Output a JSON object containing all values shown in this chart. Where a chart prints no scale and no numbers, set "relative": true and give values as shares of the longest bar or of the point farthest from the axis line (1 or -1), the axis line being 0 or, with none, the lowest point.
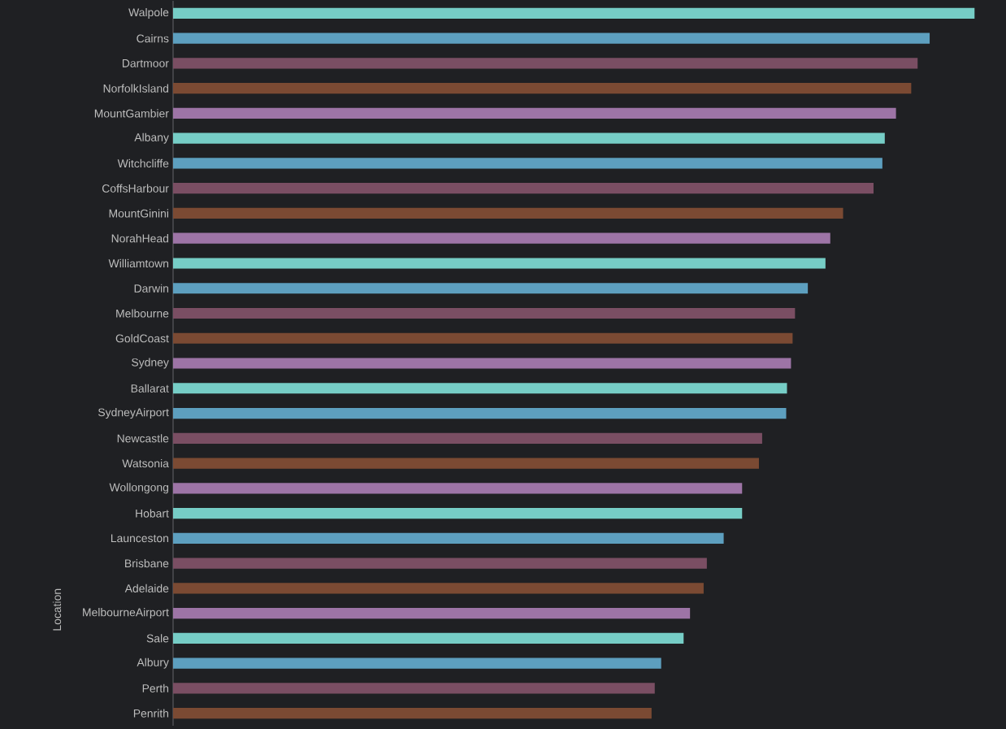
{
  "chart_data": {
    "type": "bar",
    "orientation": "horizontal",
    "relative": true,
    "ylabel": "Location",
    "categories": [
      "Walpole",
      "Cairns",
      "Dartmoor",
      "NorfolkIsland",
      "MountGambier",
      "Albany",
      "Witchcliffe",
      "CoffsHarbour",
      "MountGinini",
      "NorahHead",
      "Williamtown",
      "Darwin",
      "Melbourne",
      "GoldCoast",
      "Sydney",
      "Ballarat",
      "SydneyAirport",
      "Newcastle",
      "Watsonia",
      "Wollongong",
      "Hobart",
      "Launceston",
      "Brisbane",
      "Adelaide",
      "MelbourneAirport",
      "Sale",
      "Albury",
      "Perth",
      "Penrith"
    ],
    "values": [
      1,
      0.944,
      0.929,
      0.921,
      0.902,
      0.888,
      0.885,
      0.874,
      0.836,
      0.82,
      0.814,
      0.792,
      0.776,
      0.773,
      0.771,
      0.766,
      0.765,
      0.735,
      0.731,
      0.71,
      0.71,
      0.687,
      0.666,
      0.662,
      0.645,
      0.637,
      0.609,
      0.601,
      0.597
    ],
    "colors": [
      "#76cdc6",
      "#5d9fbf",
      "#7a4e63",
      "#7b4a33",
      "#9d74a6",
      "#76cdc6",
      "#5d9fbf",
      "#7a4e63",
      "#7b4a33",
      "#9d74a6",
      "#76cdc6",
      "#5d9fbf",
      "#7a4e63",
      "#7b4a33",
      "#9d74a6",
      "#76cdc6",
      "#5d9fbf",
      "#7a4e63",
      "#7b4a33",
      "#9d74a6",
      "#76cdc6",
      "#5d9fbf",
      "#7a4e63",
      "#7b4a33",
      "#9d74a6",
      "#76cdc6",
      "#5d9fbf",
      "#7a4e63",
      "#7b4a33"
    ]
  }
}
